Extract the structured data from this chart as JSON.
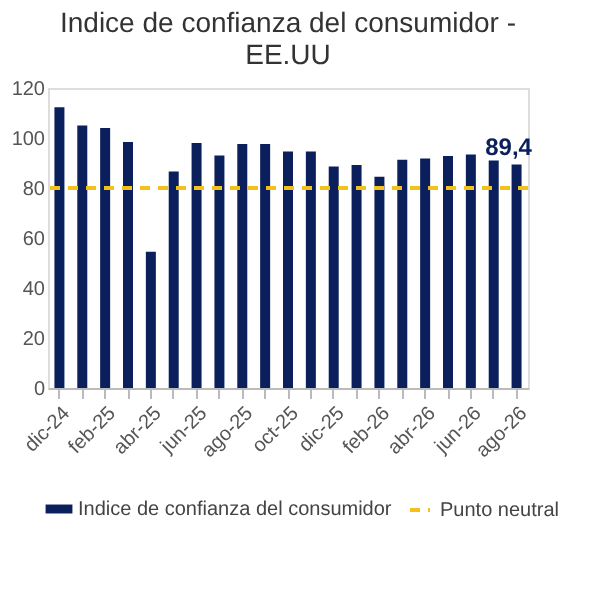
{
  "chart_data": {
    "type": "bar",
    "title": "Indice de confianza del consumidor - EE.UU",
    "categories": [
      "dic-24",
      null,
      "feb-25",
      null,
      "abr-25",
      null,
      "jun-25",
      null,
      "ago-25",
      null,
      "oct-25",
      null,
      "dic-25",
      null,
      "feb-26",
      null,
      "abr-26",
      null,
      "jun-26",
      null,
      "ago-26"
    ],
    "series": [
      {
        "name": "Indice de confianza del consumidor",
        "color": "#0b1f5c",
        "values": [
          112.3,
          105,
          104,
          98.4,
          54.5,
          86.6,
          98,
          93,
          97.6,
          97.6,
          94.6,
          94.6,
          88.6,
          89.2,
          84.5,
          91.3,
          91.8,
          92.8,
          93.4,
          91,
          89.4
        ],
        "value_labels": [
          null,
          null,
          null,
          null,
          null,
          null,
          null,
          null,
          null,
          null,
          null,
          null,
          null,
          null,
          null,
          null,
          null,
          null,
          null,
          null,
          "89,4"
        ]
      }
    ],
    "ref_lines": [
      {
        "axis": "y",
        "value": 80,
        "label": "Punto neutral",
        "color": "#f2c21b",
        "line_style": "dashed"
      }
    ],
    "ylim": [
      0,
      120
    ],
    "yticks": [
      0,
      20,
      40,
      60,
      80,
      100,
      120
    ],
    "grid": false,
    "legend": "bottom"
  }
}
